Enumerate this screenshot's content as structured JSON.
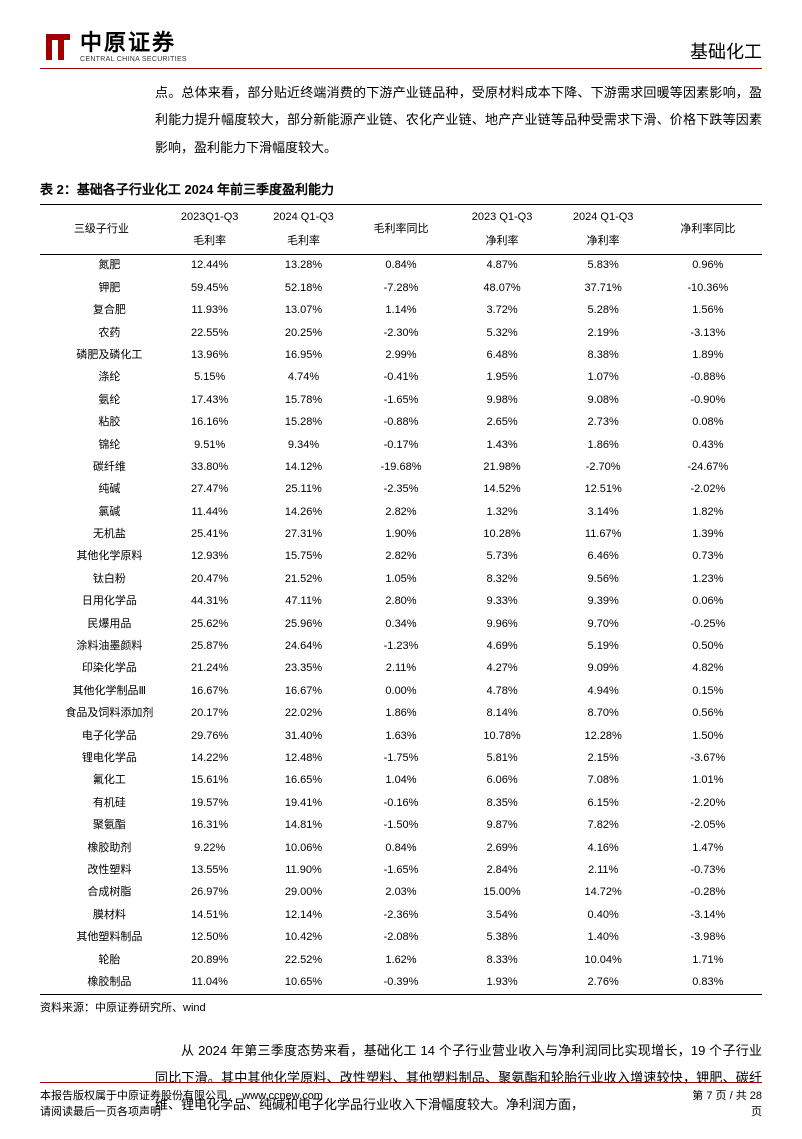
{
  "header": {
    "logo_cn": "中原证券",
    "logo_en": "CENTRAL CHINA SECURITIES",
    "category": "基础化工"
  },
  "intro_paragraph": "点。总体来看，部分贴近终端消费的下游产业链品种，受原材料成本下降、下游需求回暖等因素影响，盈利能力提升幅度较大，部分新能源产业链、农化产业链、地产产业链等品种受需求下滑、价格下跌等因素影响，盈利能力下滑幅度较大。",
  "table": {
    "title": "表 2：基础各子行业化工 2024 年前三季度盈利能力",
    "columns": {
      "col0_label": "三级子行业",
      "col1_top": "2023Q1-Q3",
      "col1_bot": "毛利率",
      "col2_top": "2024 Q1-Q3",
      "col2_bot": "毛利率",
      "col3_label": "毛利率同比",
      "col4_top": "2023 Q1-Q3",
      "col4_bot": "净利率",
      "col5_top": "2024 Q1-Q3",
      "col5_bot": "净利率",
      "col6_label": "净利率同比"
    },
    "col_widths": [
      "17%",
      "13%",
      "13%",
      "14%",
      "14%",
      "14%",
      "15%"
    ],
    "rows": [
      [
        "氮肥",
        "12.44%",
        "13.28%",
        "0.84%",
        "4.87%",
        "5.83%",
        "0.96%"
      ],
      [
        "钾肥",
        "59.45%",
        "52.18%",
        "-7.28%",
        "48.07%",
        "37.71%",
        "-10.36%"
      ],
      [
        "复合肥",
        "11.93%",
        "13.07%",
        "1.14%",
        "3.72%",
        "5.28%",
        "1.56%"
      ],
      [
        "农药",
        "22.55%",
        "20.25%",
        "-2.30%",
        "5.32%",
        "2.19%",
        "-3.13%"
      ],
      [
        "磷肥及磷化工",
        "13.96%",
        "16.95%",
        "2.99%",
        "6.48%",
        "8.38%",
        "1.89%"
      ],
      [
        "涤纶",
        "5.15%",
        "4.74%",
        "-0.41%",
        "1.95%",
        "1.07%",
        "-0.88%"
      ],
      [
        "氨纶",
        "17.43%",
        "15.78%",
        "-1.65%",
        "9.98%",
        "9.08%",
        "-0.90%"
      ],
      [
        "粘胶",
        "16.16%",
        "15.28%",
        "-0.88%",
        "2.65%",
        "2.73%",
        "0.08%"
      ],
      [
        "锦纶",
        "9.51%",
        "9.34%",
        "-0.17%",
        "1.43%",
        "1.86%",
        "0.43%"
      ],
      [
        "碳纤维",
        "33.80%",
        "14.12%",
        "-19.68%",
        "21.98%",
        "-2.70%",
        "-24.67%"
      ],
      [
        "纯碱",
        "27.47%",
        "25.11%",
        "-2.35%",
        "14.52%",
        "12.51%",
        "-2.02%"
      ],
      [
        "氯碱",
        "11.44%",
        "14.26%",
        "2.82%",
        "1.32%",
        "3.14%",
        "1.82%"
      ],
      [
        "无机盐",
        "25.41%",
        "27.31%",
        "1.90%",
        "10.28%",
        "11.67%",
        "1.39%"
      ],
      [
        "其他化学原料",
        "12.93%",
        "15.75%",
        "2.82%",
        "5.73%",
        "6.46%",
        "0.73%"
      ],
      [
        "钛白粉",
        "20.47%",
        "21.52%",
        "1.05%",
        "8.32%",
        "9.56%",
        "1.23%"
      ],
      [
        "日用化学品",
        "44.31%",
        "47.11%",
        "2.80%",
        "9.33%",
        "9.39%",
        "0.06%"
      ],
      [
        "民爆用品",
        "25.62%",
        "25.96%",
        "0.34%",
        "9.96%",
        "9.70%",
        "-0.25%"
      ],
      [
        "涂料油墨颜料",
        "25.87%",
        "24.64%",
        "-1.23%",
        "4.69%",
        "5.19%",
        "0.50%"
      ],
      [
        "印染化学品",
        "21.24%",
        "23.35%",
        "2.11%",
        "4.27%",
        "9.09%",
        "4.82%"
      ],
      [
        "其他化学制品Ⅲ",
        "16.67%",
        "16.67%",
        "0.00%",
        "4.78%",
        "4.94%",
        "0.15%"
      ],
      [
        "食品及饲料添加剂",
        "20.17%",
        "22.02%",
        "1.86%",
        "8.14%",
        "8.70%",
        "0.56%"
      ],
      [
        "电子化学品",
        "29.76%",
        "31.40%",
        "1.63%",
        "10.78%",
        "12.28%",
        "1.50%"
      ],
      [
        "锂电化学品",
        "14.22%",
        "12.48%",
        "-1.75%",
        "5.81%",
        "2.15%",
        "-3.67%"
      ],
      [
        "氟化工",
        "15.61%",
        "16.65%",
        "1.04%",
        "6.06%",
        "7.08%",
        "1.01%"
      ],
      [
        "有机硅",
        "19.57%",
        "19.41%",
        "-0.16%",
        "8.35%",
        "6.15%",
        "-2.20%"
      ],
      [
        "聚氨酯",
        "16.31%",
        "14.81%",
        "-1.50%",
        "9.87%",
        "7.82%",
        "-2.05%"
      ],
      [
        "橡胶助剂",
        "9.22%",
        "10.06%",
        "0.84%",
        "2.69%",
        "4.16%",
        "1.47%"
      ],
      [
        "改性塑料",
        "13.55%",
        "11.90%",
        "-1.65%",
        "2.84%",
        "2.11%",
        "-0.73%"
      ],
      [
        "合成树脂",
        "26.97%",
        "29.00%",
        "2.03%",
        "15.00%",
        "14.72%",
        "-0.28%"
      ],
      [
        "膜材料",
        "14.51%",
        "12.14%",
        "-2.36%",
        "3.54%",
        "0.40%",
        "-3.14%"
      ],
      [
        "其他塑料制品",
        "12.50%",
        "10.42%",
        "-2.08%",
        "5.38%",
        "1.40%",
        "-3.98%"
      ],
      [
        "轮胎",
        "20.89%",
        "22.52%",
        "1.62%",
        "8.33%",
        "10.04%",
        "1.71%"
      ],
      [
        "橡胶制品",
        "11.04%",
        "10.65%",
        "-0.39%",
        "1.93%",
        "2.76%",
        "0.83%"
      ]
    ],
    "source": "资料来源：中原证券研究所、wind"
  },
  "closing_paragraph": "从 2024 年第三季度态势来看，基础化工 14 个子行业营业收入与净利润同比实现增长，19 个子行业同比下滑。其中其他化学原料、改性塑料、其他塑料制品、聚氨酯和轮胎行业收入增速较快，钾肥、碳纤维、锂电化学品、纯碱和电子化学品行业收入下滑幅度较大。净利润方面，",
  "footer": {
    "left1": "本报告版权属于中原证券股份有限公司",
    "url": "www.ccnew.com",
    "left2": "请阅读最后一页各项声明",
    "right1": "第 7 页 / 共 28",
    "right2": "页"
  },
  "colors": {
    "accent": "#a00000",
    "text": "#000000",
    "background": "#ffffff"
  }
}
